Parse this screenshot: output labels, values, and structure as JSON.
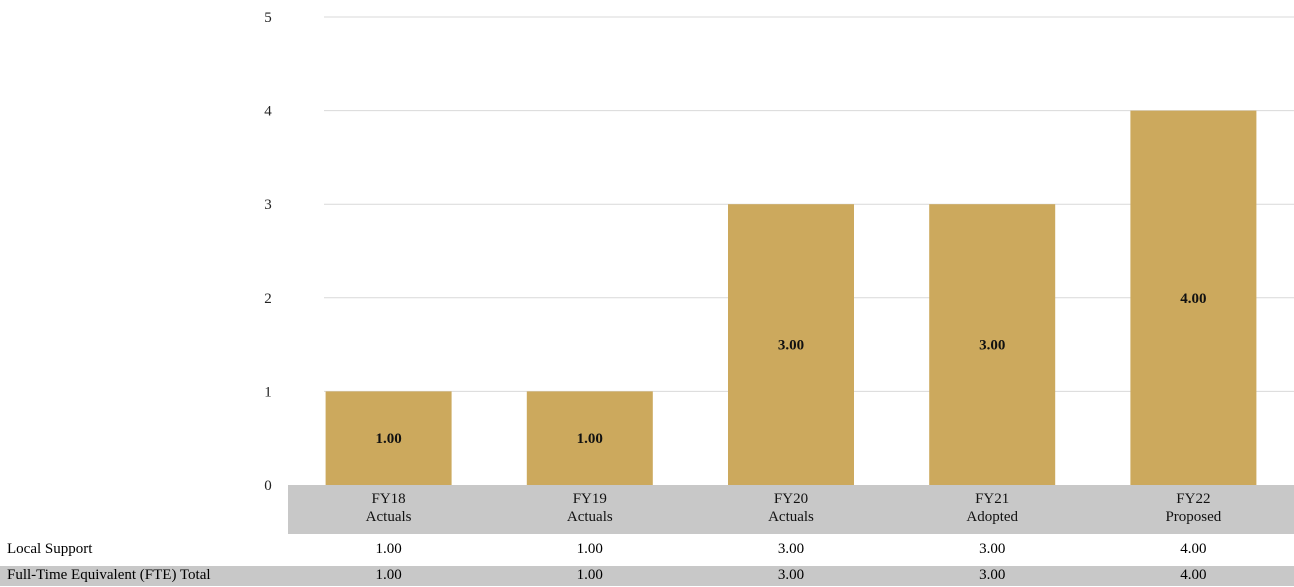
{
  "chart_data": {
    "type": "bar",
    "categories": [
      [
        "FY18",
        "Actuals"
      ],
      [
        "FY19",
        "Actuals"
      ],
      [
        "FY20",
        "Actuals"
      ],
      [
        "FY21",
        "Adopted"
      ],
      [
        "FY22",
        "Proposed"
      ]
    ],
    "series": [
      {
        "name": "Local Support",
        "values": [
          1,
          1,
          3,
          3,
          4
        ]
      }
    ],
    "data_labels": [
      "1.00",
      "1.00",
      "3.00",
      "3.00",
      "4.00"
    ],
    "ylim": [
      0,
      5
    ],
    "yticks": [
      "0",
      "1",
      "2",
      "3",
      "4",
      "5"
    ],
    "grid": true,
    "bar_color": "#cca95d",
    "category_band_color": "#c8c8c8"
  },
  "table": {
    "rows": [
      {
        "label": "Local Support",
        "values": [
          "1.00",
          "1.00",
          "3.00",
          "3.00",
          "4.00"
        ]
      },
      {
        "label": "Full-Time Equivalent (FTE) Total",
        "values": [
          "1.00",
          "1.00",
          "3.00",
          "3.00",
          "4.00"
        ]
      }
    ],
    "total_row_color": "#c8c8c8"
  }
}
